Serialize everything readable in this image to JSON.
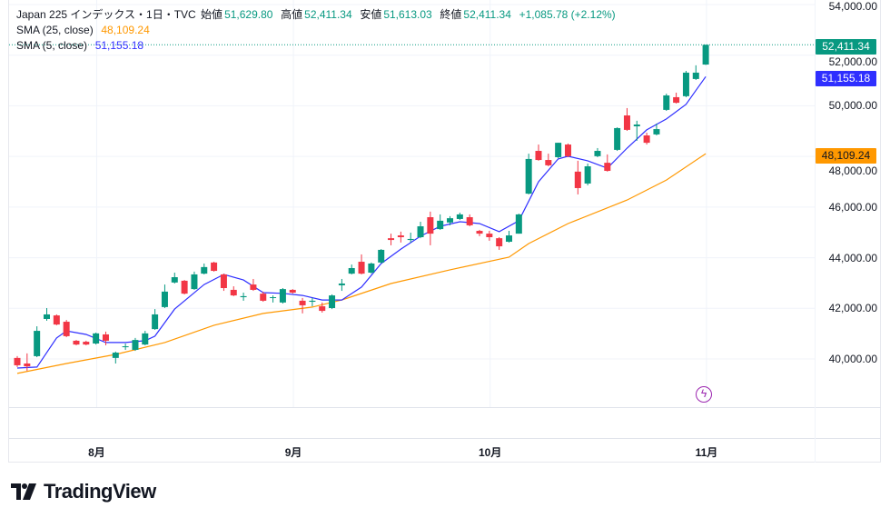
{
  "header": {
    "symbol": "Japan 225 インデックス・1日・TVC",
    "open_label": "始値",
    "open": "51,629.80",
    "high_label": "高値",
    "high": "52,411.34",
    "low_label": "安値",
    "low": "51,613.03",
    "close_label": "終値",
    "close": "52,411.34",
    "change": "+1,085.78 (+2.12%)"
  },
  "indicators": [
    {
      "name": "SMA (25, close)",
      "value": "48,109.24",
      "color": "#ff9800"
    },
    {
      "name": "SMA (5, close)",
      "value": "51,155.18",
      "color": "#2f2fff"
    }
  ],
  "price_axis": {
    "labels": [
      "54,000.00",
      "52,000.00",
      "50,000.00",
      "48,000.00",
      "46,000.00",
      "44,000.00",
      "42,000.00",
      "40,000.00"
    ],
    "last_price_tag": "52,411.34",
    "sma5_tag": "51,155.18",
    "sma25_tag": "48,109.24"
  },
  "time_axis": {
    "labels": [
      "8月",
      "9月",
      "10月",
      "11月"
    ]
  },
  "brand": "TradingView",
  "colors": {
    "up": "#089981",
    "down": "#f23645",
    "sma5": "#2f2fff",
    "sma25": "#ff9800",
    "grid": "#f0f3fa"
  },
  "chart_data": {
    "type": "candlestick",
    "title": "Japan 225 インデックス・1日・TVC",
    "ylim": [
      37020,
      54180
    ],
    "yticks": [
      40000,
      42000,
      44000,
      46000,
      48000,
      50000,
      52000,
      54000
    ],
    "month_ticks": [
      {
        "label": "8月",
        "index": 9
      },
      {
        "label": "9月",
        "index": 29
      },
      {
        "label": "10月",
        "index": 49
      },
      {
        "label": "11月",
        "index": 71
      }
    ],
    "ohlc": [
      [
        40040,
        40110,
        39680,
        39750
      ],
      [
        39820,
        40220,
        39530,
        39710
      ],
      [
        40110,
        41290,
        40070,
        41110
      ],
      [
        41580,
        42010,
        41510,
        41760
      ],
      [
        41720,
        41760,
        41330,
        41360
      ],
      [
        41470,
        41540,
        40860,
        40900
      ],
      [
        40720,
        40750,
        40540,
        40570
      ],
      [
        40680,
        40720,
        40540,
        40570
      ],
      [
        40610,
        41040,
        40570,
        41010
      ],
      [
        40970,
        41080,
        40540,
        40720
      ],
      [
        40040,
        40290,
        39820,
        40250
      ],
      [
        40470,
        40610,
        40360,
        40500
      ],
      [
        40360,
        40830,
        40320,
        40750
      ],
      [
        40570,
        41110,
        40540,
        41010
      ],
      [
        41180,
        41970,
        41150,
        41760
      ],
      [
        42050,
        42940,
        42010,
        42660
      ],
      [
        43020,
        43410,
        42980,
        43230
      ],
      [
        43090,
        43120,
        42550,
        42580
      ],
      [
        42760,
        43450,
        42730,
        43340
      ],
      [
        43370,
        43770,
        43340,
        43630
      ],
      [
        43810,
        43840,
        43450,
        43480
      ],
      [
        43340,
        43370,
        42690,
        42800
      ],
      [
        42730,
        42870,
        42480,
        42510
      ],
      [
        42440,
        42620,
        42300,
        42480
      ],
      [
        42940,
        43160,
        42690,
        42730
      ],
      [
        42580,
        42660,
        42260,
        42300
      ],
      [
        42410,
        42510,
        42230,
        42440
      ],
      [
        42230,
        42800,
        42190,
        42760
      ],
      [
        42730,
        42760,
        42580,
        42620
      ],
      [
        42300,
        42410,
        41800,
        42120
      ],
      [
        42260,
        42410,
        42080,
        42300
      ],
      [
        42080,
        42230,
        41830,
        41900
      ],
      [
        42010,
        42550,
        41970,
        42510
      ],
      [
        42910,
        43160,
        42690,
        42980
      ],
      [
        43370,
        43730,
        43340,
        43590
      ],
      [
        43840,
        44130,
        43340,
        43370
      ],
      [
        43410,
        43810,
        43370,
        43770
      ],
      [
        43810,
        44340,
        43770,
        44310
      ],
      [
        44770,
        44950,
        44490,
        44700
      ],
      [
        44880,
        45030,
        44600,
        44810
      ],
      [
        44700,
        44990,
        44600,
        44740
      ],
      [
        44810,
        45420,
        44770,
        45240
      ],
      [
        45600,
        45820,
        44490,
        44950
      ],
      [
        45130,
        45710,
        45100,
        45460
      ],
      [
        45390,
        45640,
        45280,
        45560
      ],
      [
        45530,
        45780,
        45490,
        45710
      ],
      [
        45600,
        45710,
        45240,
        45280
      ],
      [
        45060,
        45100,
        44850,
        44950
      ],
      [
        44950,
        45060,
        44670,
        44810
      ],
      [
        44770,
        44810,
        44310,
        44450
      ],
      [
        44630,
        45060,
        44600,
        44880
      ],
      [
        44950,
        45740,
        44950,
        45710
      ],
      [
        46530,
        48110,
        46500,
        47900
      ],
      [
        48220,
        48470,
        47830,
        47860
      ],
      [
        47860,
        48110,
        47610,
        47650
      ],
      [
        47970,
        48540,
        47930,
        48540
      ],
      [
        48470,
        48510,
        47970,
        48010
      ],
      [
        47400,
        47830,
        46500,
        46750
      ],
      [
        46930,
        47720,
        46860,
        47610
      ],
      [
        48010,
        48330,
        47970,
        48220
      ],
      [
        47750,
        48080,
        47400,
        47430
      ],
      [
        48260,
        49150,
        48220,
        49120
      ],
      [
        49620,
        49910,
        49010,
        49050
      ],
      [
        49190,
        49410,
        48620,
        49260
      ],
      [
        48830,
        48940,
        48470,
        48540
      ],
      [
        48870,
        49300,
        48830,
        49080
      ],
      [
        49840,
        50480,
        49800,
        50410
      ],
      [
        50340,
        50520,
        50090,
        50120
      ],
      [
        50380,
        51380,
        50340,
        51310
      ],
      [
        51060,
        51600,
        51020,
        51310
      ],
      [
        51629.8,
        52411.34,
        51613.03,
        52411.34
      ]
    ],
    "sma25": [
      [
        0,
        39430
      ],
      [
        5,
        39820
      ],
      [
        10,
        40180
      ],
      [
        15,
        40650
      ],
      [
        20,
        41330
      ],
      [
        25,
        41800
      ],
      [
        30,
        42050
      ],
      [
        33,
        42330
      ],
      [
        38,
        42980
      ],
      [
        44,
        43520
      ],
      [
        50,
        44020
      ],
      [
        52,
        44560
      ],
      [
        56,
        45350
      ],
      [
        62,
        46280
      ],
      [
        66,
        47070
      ],
      [
        70,
        48109.24
      ]
    ],
    "sma5": [
      [
        0,
        39640
      ],
      [
        2,
        39680
      ],
      [
        4,
        40830
      ],
      [
        5,
        41110
      ],
      [
        7,
        40970
      ],
      [
        9,
        40650
      ],
      [
        11,
        40650
      ],
      [
        13,
        40720
      ],
      [
        14,
        40900
      ],
      [
        16,
        41970
      ],
      [
        19,
        42940
      ],
      [
        21,
        43340
      ],
      [
        23,
        43120
      ],
      [
        25,
        42620
      ],
      [
        27,
        42590
      ],
      [
        29,
        42510
      ],
      [
        31,
        42330
      ],
      [
        33,
        42330
      ],
      [
        35,
        42840
      ],
      [
        37,
        43770
      ],
      [
        39,
        44340
      ],
      [
        41,
        44850
      ],
      [
        43,
        45240
      ],
      [
        45,
        45420
      ],
      [
        47,
        45350
      ],
      [
        49,
        45030
      ],
      [
        51,
        45460
      ],
      [
        53,
        47000
      ],
      [
        55,
        47900
      ],
      [
        56,
        48010
      ],
      [
        58,
        47830
      ],
      [
        60,
        47540
      ],
      [
        62,
        48330
      ],
      [
        64,
        49050
      ],
      [
        66,
        49480
      ],
      [
        68,
        50060
      ],
      [
        70,
        51155.18
      ]
    ]
  }
}
